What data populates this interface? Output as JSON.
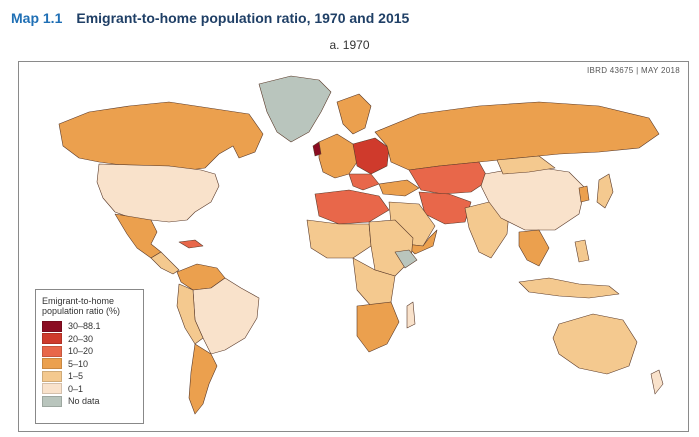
{
  "header": {
    "map_number": "Map 1.1",
    "title": "Emigrant-to-home population ratio, 1970 and 2015",
    "panel_label": "a. 1970"
  },
  "credit": "IBRD 43675  |  MAY 2018",
  "legend": {
    "title": "Emigrant-to-home population ratio (%)",
    "items": [
      {
        "label": "30–88.1",
        "color": "#8b0d22"
      },
      {
        "label": "20–30",
        "color": "#cf3a2c"
      },
      {
        "label": "10–20",
        "color": "#e8674a"
      },
      {
        "label": "5–10",
        "color": "#eba04e"
      },
      {
        "label": "1–5",
        "color": "#f4c98f"
      },
      {
        "label": "0–1",
        "color": "#f9e2cb"
      },
      {
        "label": "No data",
        "color": "#b9c5bd"
      }
    ]
  },
  "colors": {
    "title_blue": "#1f6fb5",
    "title_dark": "#1f3f66",
    "border": "#5a3a2a"
  }
}
